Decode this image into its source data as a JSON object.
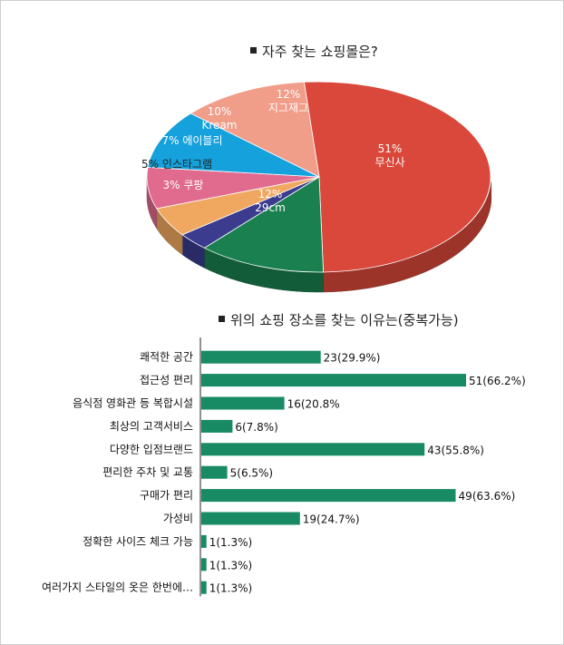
{
  "pie_title": "자주 찾는 쇼핑몰은?",
  "bar_title": "위의 쇼핑 장소를 찾는 이유는(중복가능)",
  "chart_data": [
    {
      "type": "pie",
      "title": "자주 찾는 쇼핑몰은?",
      "slices": [
        {
          "label": "무신사",
          "value": 51,
          "value_label": "51%",
          "color": "#d9483a"
        },
        {
          "label": "29cm",
          "value": 12,
          "value_label": "12%",
          "color": "#1a8050"
        },
        {
          "label": "쿠팡",
          "value": 3,
          "value_label": "3%",
          "color": "#3b3c8e"
        },
        {
          "label": "인스타그램",
          "value": 5,
          "value_label": "5%",
          "color": "#f0a860"
        },
        {
          "label": "에이블리",
          "value": 7,
          "value_label": "7%",
          "color": "#e06b8f"
        },
        {
          "label": "Kream",
          "value": 10,
          "value_label": "10%",
          "color": "#14a1dc"
        },
        {
          "label": "지그재그",
          "value": 12,
          "value_label": "12%",
          "color": "#f09d8a"
        }
      ]
    },
    {
      "type": "bar",
      "orientation": "horizontal",
      "title": "위의 쇼핑 장소를 찾는 이유는(중복가능)",
      "color": "#188a64",
      "xlim": [
        0,
        51
      ],
      "categories": [
        "쾌적한 공간",
        "접근성 편리",
        "음식점 영화관 등 복합시설",
        "최상의 고객서비스",
        "다양한 입점브랜드",
        "편리한 주차 및 교통",
        "구매가 편리",
        "가성비",
        "정확한 사이즈 체크 가능",
        "",
        "여러가지 스타일의 옷은 한번에…"
      ],
      "values": [
        23,
        51,
        16,
        6,
        43,
        5,
        49,
        19,
        1,
        1,
        1
      ],
      "value_labels": [
        "23(29.9%)",
        "51(66.2%)",
        "16(20.8%",
        "6(7.8%)",
        "43(55.8%)",
        "5(6.5%)",
        "49(63.6%)",
        "19(24.7%)",
        "1(1.3%)",
        "1(1.3%)",
        "1(1.3%)"
      ]
    }
  ]
}
